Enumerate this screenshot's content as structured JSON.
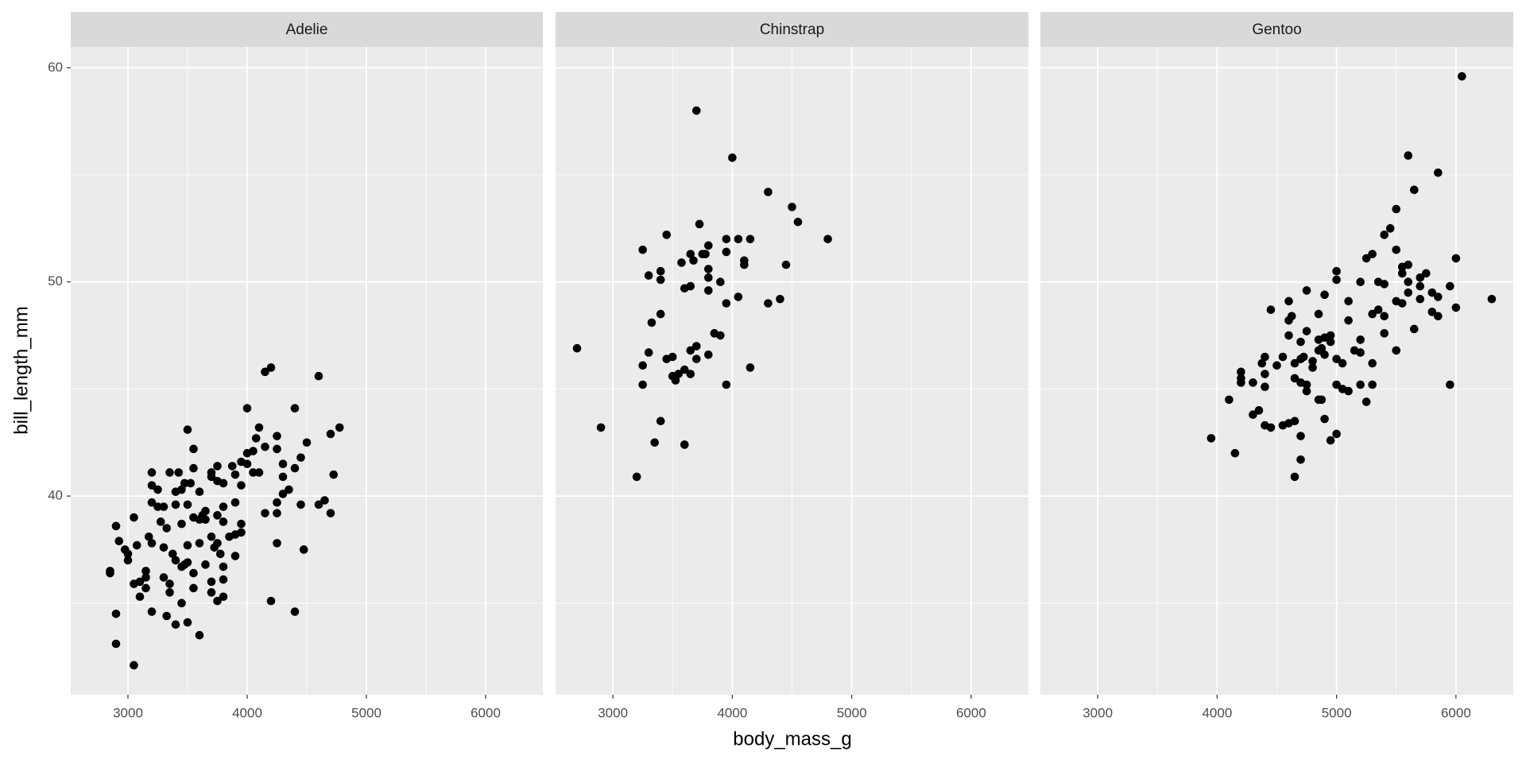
{
  "chart_data": {
    "type": "scatter",
    "xlabel": "body_mass_g",
    "ylabel": "bill_length_mm",
    "color": "#000000",
    "grid": true,
    "xlim": [
      2520,
      6480
    ],
    "ylim": [
      30.725,
      60.975
    ],
    "xticks": [
      3000,
      4000,
      5000,
      6000
    ],
    "yticks": [
      40,
      50,
      60
    ],
    "facets": [
      {
        "title": "Adelie",
        "x": [
          2850,
          2850,
          2900,
          2900,
          2900,
          2925,
          2975,
          3000,
          3000,
          3050,
          3050,
          3050,
          3075,
          3100,
          3100,
          3150,
          3150,
          3150,
          3175,
          3200,
          3200,
          3200,
          3200,
          3200,
          3250,
          3250,
          3275,
          3300,
          3300,
          3300,
          3325,
          3325,
          3350,
          3350,
          3350,
          3375,
          3400,
          3400,
          3400,
          3400,
          3425,
          3450,
          3450,
          3450,
          3450,
          3475,
          3475,
          3500,
          3500,
          3500,
          3500,
          3500,
          3525,
          3550,
          3550,
          3550,
          3550,
          3550,
          3600,
          3600,
          3600,
          3600,
          3625,
          3650,
          3650,
          3650,
          3700,
          3700,
          3700,
          3700,
          3700,
          3725,
          3750,
          3750,
          3750,
          3750,
          3750,
          3775,
          3800,
          3800,
          3800,
          3800,
          3800,
          3800,
          3850,
          3875,
          3900,
          3900,
          3900,
          3900,
          3950,
          3950,
          3950,
          3950,
          4000,
          4000,
          4000,
          4050,
          4050,
          4075,
          4100,
          4100,
          4150,
          4150,
          4150,
          4200,
          4200,
          4250,
          4250,
          4250,
          4250,
          4250,
          4300,
          4300,
          4300,
          4350,
          4400,
          4400,
          4400,
          4450,
          4450,
          4475,
          4500,
          4600,
          4600,
          4650,
          4700,
          4700,
          4725,
          4775
        ],
        "y": [
          36.5,
          36.4,
          38.6,
          34.5,
          33.1,
          37.9,
          37.5,
          37.0,
          37.3,
          32.1,
          35.9,
          39.0,
          37.7,
          36.0,
          35.3,
          36.2,
          36.5,
          35.7,
          38.1,
          41.1,
          40.5,
          39.7,
          37.8,
          34.6,
          40.3,
          39.5,
          38.8,
          39.5,
          36.2,
          37.6,
          34.4,
          38.5,
          41.1,
          35.9,
          35.5,
          37.3,
          40.2,
          39.6,
          37.0,
          34.0,
          41.1,
          38.7,
          36.7,
          35.0,
          40.3,
          40.6,
          36.8,
          43.1,
          39.6,
          37.7,
          36.9,
          34.1,
          40.6,
          42.2,
          41.3,
          39.0,
          36.4,
          35.7,
          40.2,
          38.9,
          37.8,
          33.5,
          39.1,
          39.3,
          38.9,
          36.8,
          41.1,
          40.9,
          38.1,
          36.0,
          35.5,
          37.6,
          41.4,
          40.7,
          39.1,
          37.8,
          35.1,
          37.3,
          40.6,
          39.5,
          38.8,
          36.7,
          36.1,
          35.3,
          38.1,
          41.4,
          41.0,
          39.7,
          38.2,
          37.2,
          41.6,
          40.5,
          38.7,
          38.3,
          44.1,
          42.0,
          41.5,
          42.1,
          41.1,
          42.7,
          43.2,
          41.1,
          45.8,
          42.3,
          39.2,
          46.0,
          35.1,
          42.8,
          42.2,
          39.7,
          37.8,
          39.2,
          41.5,
          40.9,
          40.1,
          40.3,
          44.1,
          41.3,
          34.6,
          41.8,
          39.6,
          37.5,
          42.5,
          45.6,
          39.6,
          39.8,
          42.9,
          39.2,
          41.0,
          43.2
        ]
      },
      {
        "title": "Chinstrap",
        "x": [
          2700,
          2900,
          3200,
          3250,
          3250,
          3250,
          3300,
          3300,
          3325,
          3350,
          3400,
          3400,
          3400,
          3400,
          3450,
          3450,
          3500,
          3500,
          3525,
          3550,
          3575,
          3600,
          3600,
          3600,
          3650,
          3650,
          3650,
          3650,
          3675,
          3700,
          3700,
          3700,
          3725,
          3750,
          3775,
          3800,
          3800,
          3800,
          3800,
          3800,
          3850,
          3900,
          3900,
          3950,
          3950,
          3950,
          3950,
          4000,
          4050,
          4050,
          4100,
          4100,
          4150,
          4150,
          4300,
          4300,
          4400,
          4450,
          4500,
          4550,
          4800
        ],
        "y": [
          46.9,
          43.2,
          40.9,
          51.5,
          46.1,
          45.2,
          50.3,
          46.7,
          48.1,
          42.5,
          50.5,
          50.1,
          48.5,
          43.5,
          52.2,
          46.4,
          46.5,
          45.6,
          45.4,
          45.7,
          50.9,
          49.7,
          45.9,
          42.4,
          51.3,
          49.8,
          46.8,
          45.7,
          51.0,
          58.0,
          47.0,
          46.4,
          52.7,
          51.3,
          51.3,
          51.7,
          50.6,
          50.2,
          49.6,
          46.6,
          47.6,
          50.0,
          47.5,
          52.0,
          51.4,
          49.0,
          45.2,
          55.8,
          52.0,
          49.3,
          51.0,
          50.8,
          52.0,
          46.0,
          54.2,
          49.0,
          49.2,
          50.8,
          53.5,
          52.8,
          52.0
        ]
      },
      {
        "title": "Gentoo",
        "x": [
          3950,
          4100,
          4150,
          4200,
          4200,
          4200,
          4300,
          4300,
          4350,
          4375,
          4400,
          4400,
          4400,
          4400,
          4450,
          4450,
          4500,
          4550,
          4550,
          4600,
          4600,
          4600,
          4600,
          4625,
          4650,
          4650,
          4650,
          4650,
          4700,
          4700,
          4700,
          4700,
          4700,
          4725,
          4750,
          4750,
          4750,
          4750,
          4800,
          4800,
          4850,
          4850,
          4850,
          4850,
          4875,
          4875,
          4900,
          4900,
          4900,
          4900,
          4950,
          4950,
          4950,
          5000,
          5000,
          5000,
          5000,
          5000,
          5050,
          5050,
          5100,
          5100,
          5100,
          5150,
          5200,
          5200,
          5200,
          5200,
          5250,
          5250,
          5300,
          5300,
          5300,
          5300,
          5350,
          5350,
          5400,
          5400,
          5400,
          5400,
          5450,
          5500,
          5500,
          5500,
          5500,
          5550,
          5550,
          5550,
          5600,
          5600,
          5600,
          5600,
          5650,
          5650,
          5700,
          5700,
          5700,
          5750,
          5800,
          5800,
          5850,
          5850,
          5850,
          5950,
          5950,
          6000,
          6000,
          6050,
          6300
        ],
        "y": [
          42.7,
          44.5,
          42.0,
          45.8,
          45.5,
          45.3,
          45.3,
          43.8,
          44.0,
          46.2,
          46.5,
          45.7,
          45.1,
          43.3,
          48.7,
          43.2,
          46.1,
          46.5,
          43.3,
          49.1,
          48.2,
          47.5,
          43.4,
          48.4,
          46.2,
          45.5,
          43.5,
          40.9,
          47.2,
          46.4,
          45.3,
          42.8,
          41.7,
          46.5,
          49.6,
          47.7,
          45.2,
          44.9,
          46.0,
          46.3,
          48.5,
          47.3,
          46.8,
          44.5,
          46.9,
          44.5,
          49.4,
          47.4,
          46.6,
          43.6,
          47.5,
          47.2,
          42.6,
          50.5,
          50.1,
          46.4,
          45.2,
          42.9,
          46.2,
          45.0,
          49.1,
          48.2,
          44.9,
          46.8,
          50.0,
          45.2,
          47.3,
          46.7,
          51.1,
          44.4,
          51.3,
          48.5,
          46.2,
          45.2,
          50.0,
          48.7,
          52.2,
          49.9,
          48.4,
          47.6,
          52.5,
          53.4,
          51.5,
          49.1,
          46.8,
          50.7,
          50.4,
          49.0,
          55.9,
          50.8,
          50.0,
          49.5,
          54.3,
          47.8,
          50.2,
          49.8,
          49.2,
          50.4,
          49.5,
          48.6,
          55.1,
          49.3,
          48.4,
          49.8,
          45.2,
          51.1,
          48.8,
          59.6,
          49.2
        ]
      }
    ]
  }
}
